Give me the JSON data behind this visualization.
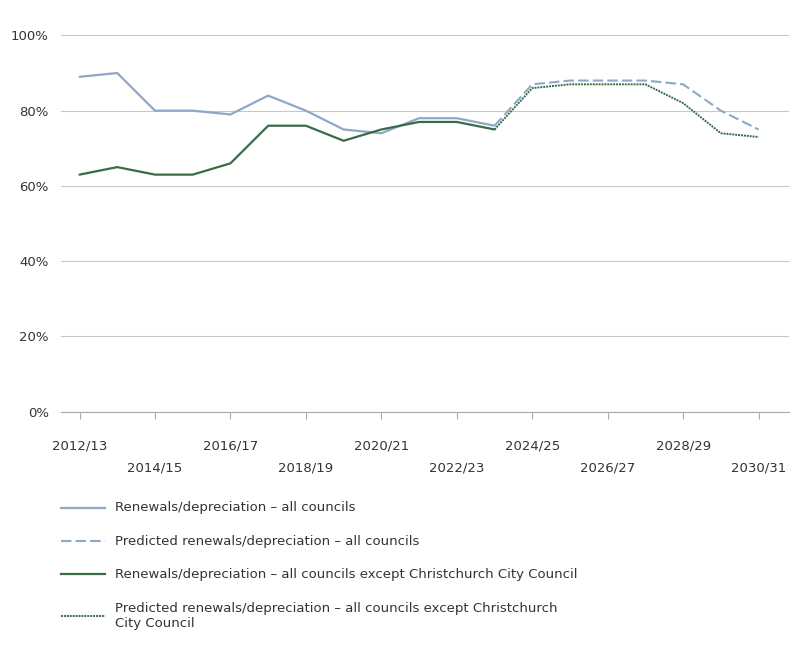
{
  "actual_all_x": [
    2012,
    2013,
    2014,
    2015,
    2016,
    2017,
    2018,
    2019,
    2020,
    2021,
    2022,
    2023
  ],
  "actual_all_y": [
    0.89,
    0.9,
    0.8,
    0.8,
    0.79,
    0.84,
    0.8,
    0.75,
    0.74,
    0.78,
    0.78,
    0.76
  ],
  "predicted_all_x": [
    2023,
    2024,
    2025,
    2026,
    2027,
    2028,
    2029,
    2030
  ],
  "predicted_all_y": [
    0.76,
    0.87,
    0.88,
    0.88,
    0.88,
    0.87,
    0.8,
    0.75
  ],
  "actual_excl_x": [
    2012,
    2013,
    2014,
    2015,
    2016,
    2017,
    2018,
    2019,
    2020,
    2021,
    2022,
    2023
  ],
  "actual_excl_y": [
    0.63,
    0.65,
    0.63,
    0.63,
    0.66,
    0.76,
    0.76,
    0.72,
    0.75,
    0.77,
    0.77,
    0.75
  ],
  "predicted_excl_x": [
    2023,
    2024,
    2025,
    2026,
    2027,
    2028,
    2029,
    2030
  ],
  "predicted_excl_y": [
    0.75,
    0.86,
    0.87,
    0.87,
    0.87,
    0.82,
    0.74,
    0.73
  ],
  "color_all": "#8fa8c8",
  "color_excl": "#3a6b49",
  "yticks": [
    0.0,
    0.2,
    0.4,
    0.6,
    0.8,
    1.0
  ],
  "xlim": [
    2011.5,
    2030.8
  ],
  "xtick_labels_row1": [
    "2012/13",
    "2016/17",
    "2020/21",
    "2024/25",
    "2028/29"
  ],
  "xtick_positions_row1": [
    2012,
    2016,
    2020,
    2024,
    2028
  ],
  "xtick_labels_row2": [
    "2014/15",
    "2018/19",
    "2022/23",
    "2026/27",
    "2030/31"
  ],
  "xtick_positions_row2": [
    2014,
    2018,
    2022,
    2026,
    2030
  ],
  "legend_labels": [
    "Renewals/depreciation – all councils",
    "Predicted renewals/depreciation – all councils",
    "Renewals/depreciation – all councils except Christchurch City Council",
    "Predicted renewals/depreciation – all councils except Christchurch\nCity Council"
  ],
  "font_size": 9.5,
  "background_color": "#ffffff"
}
